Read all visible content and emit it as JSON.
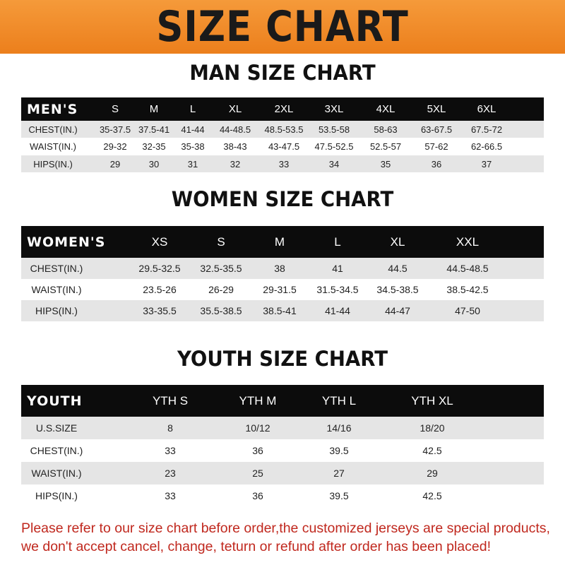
{
  "banner_title": "SIZE CHART",
  "colors": {
    "banner": "#f08a24",
    "header_row": "#0c0c0c",
    "stripe": "#e5e5e5",
    "note": "#c0281e"
  },
  "men": {
    "title": "MAN SIZE CHART",
    "header": [
      "MEN'S",
      "S",
      "M",
      "L",
      "XL",
      "2XL",
      "3XL",
      "4XL",
      "5XL",
      "6XL"
    ],
    "rows": [
      [
        "CHEST(IN.)",
        "35-37.5",
        "37.5-41",
        "41-44",
        "44-48.5",
        "48.5-53.5",
        "53.5-58",
        "58-63",
        "63-67.5",
        "67.5-72"
      ],
      [
        "WAIST(IN.)",
        "29-32",
        "32-35",
        "35-38",
        "38-43",
        "43-47.5",
        "47.5-52.5",
        "52.5-57",
        "57-62",
        "62-66.5"
      ],
      [
        "HIPS(IN.)",
        "29",
        "30",
        "31",
        "32",
        "33",
        "34",
        "35",
        "36",
        "37"
      ]
    ]
  },
  "women": {
    "title": "WOMEN SIZE CHART",
    "header": [
      "WOMEN'S",
      "XS",
      "S",
      "M",
      "L",
      "XL",
      "XXL"
    ],
    "rows": [
      [
        "CHEST(IN.)",
        "29.5-32.5",
        "32.5-35.5",
        "38",
        "41",
        "44.5",
        "44.5-48.5"
      ],
      [
        "WAIST(IN.)",
        "23.5-26",
        "26-29",
        "29-31.5",
        "31.5-34.5",
        "34.5-38.5",
        "38.5-42.5"
      ],
      [
        "HIPS(IN.)",
        "33-35.5",
        "35.5-38.5",
        "38.5-41",
        "41-44",
        "44-47",
        "47-50"
      ]
    ]
  },
  "youth": {
    "title": "YOUTH SIZE CHART",
    "header": [
      "YOUTH",
      "YTH S",
      "YTH M",
      "YTH L",
      "YTH XL"
    ],
    "rows": [
      [
        "U.S.SIZE",
        "8",
        "10/12",
        "14/16",
        "18/20"
      ],
      [
        "CHEST(IN.)",
        "33",
        "36",
        "39.5",
        "42.5"
      ],
      [
        "WAIST(IN.)",
        "23",
        "25",
        "27",
        "29"
      ],
      [
        "HIPS(IN.)",
        "33",
        "36",
        "39.5",
        "42.5"
      ]
    ]
  },
  "note": "Please refer to our size chart before order,the customized jerseys are special products, we don't accept cancel, change, teturn or refund after order has been placed!"
}
